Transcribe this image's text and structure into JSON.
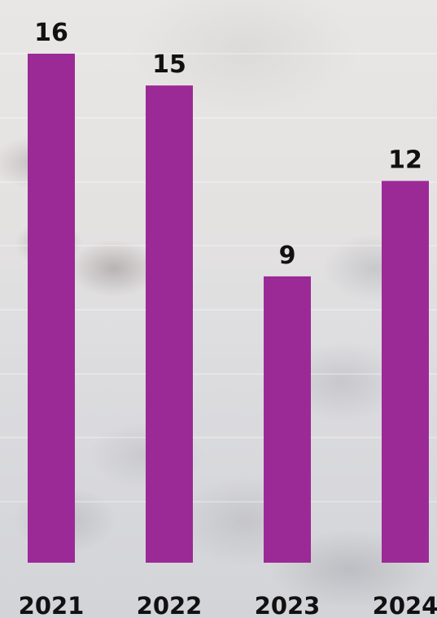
{
  "chart_data": {
    "type": "bar",
    "categories": [
      "2021",
      "2022",
      "2023",
      "2024"
    ],
    "values": [
      16,
      15,
      9,
      12
    ],
    "value_labels": [
      "16",
      "15",
      "9",
      "12"
    ],
    "ylim": [
      0,
      16
    ],
    "grid": true,
    "legend": "none",
    "colors": {
      "bar": "#9b2a96",
      "text": "#111111"
    }
  }
}
